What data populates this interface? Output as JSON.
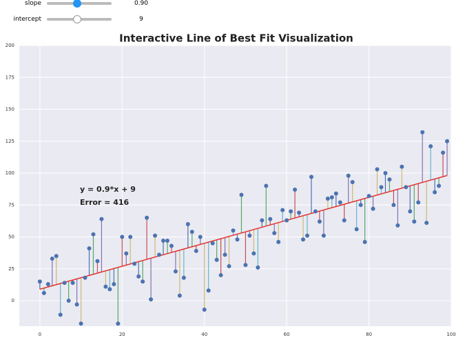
{
  "widgets": [
    {
      "label": "slope",
      "value": 0.9,
      "value_label": "0.90"
    },
    {
      "label": "intercept",
      "value": 9
    }
  ],
  "chart_data": {
    "type": "scatter",
    "title": "Interactive Line of Best Fit Visualization",
    "x": [
      0,
      1,
      2,
      3,
      4,
      5,
      6,
      7,
      8,
      9,
      10,
      11,
      12,
      13,
      14,
      15,
      16,
      17,
      18,
      19,
      20,
      21,
      22,
      23,
      24,
      25,
      26,
      27,
      28,
      29,
      30,
      31,
      32,
      33,
      34,
      35,
      36,
      37,
      38,
      39,
      40,
      41,
      42,
      43,
      44,
      45,
      46,
      47,
      48,
      49,
      50,
      51,
      52,
      53,
      54,
      55,
      56,
      57,
      58,
      59,
      60,
      61,
      62,
      63,
      64,
      65,
      66,
      67,
      68,
      69,
      70,
      71,
      72,
      73,
      74,
      75,
      76,
      77,
      78,
      79,
      80,
      81,
      82,
      83,
      84,
      85,
      86,
      87,
      88,
      89,
      90,
      91,
      92,
      93,
      94,
      95,
      96,
      97,
      98,
      99
    ],
    "values": [
      15,
      6,
      13,
      33,
      35,
      -11,
      14,
      0,
      14,
      -3,
      -18,
      18,
      41,
      52,
      31,
      64,
      11,
      9,
      13,
      -18,
      50,
      37,
      50,
      29,
      19,
      15,
      65,
      1,
      51,
      36,
      47,
      47,
      43,
      23,
      4,
      18,
      60,
      54,
      39,
      50,
      -7,
      8,
      45,
      32,
      20,
      36,
      27,
      55,
      48,
      83,
      28,
      51,
      37,
      26,
      63,
      90,
      64,
      53,
      46,
      71,
      63,
      70,
      87,
      69,
      48,
      51,
      97,
      70,
      62,
      51,
      80,
      81,
      84,
      77,
      63,
      98,
      93,
      56,
      75,
      46,
      82,
      72,
      103,
      89,
      100,
      95,
      75,
      59,
      105,
      89,
      70,
      62,
      77,
      132,
      61,
      121,
      85,
      90,
      116,
      125
    ],
    "color": "#4c72b0",
    "residual_colors": [
      "#4c72b0",
      "#55a868",
      "#c44e52",
      "#8172b2",
      "#ccb974",
      "#64b5cd"
    ],
    "fit_line": {
      "slope": 0.9,
      "intercept": 9,
      "color": "#e3342f"
    },
    "annotations": [
      "y = 0.9*x + 9",
      "Error = 416"
    ],
    "xlim": [
      -5,
      100
    ],
    "ylim": [
      -20,
      200
    ],
    "xticks": [
      0,
      20,
      40,
      60,
      80,
      100
    ],
    "yticks": [
      0,
      25,
      50,
      75,
      100,
      125,
      150,
      175,
      200
    ],
    "grid": true
  }
}
